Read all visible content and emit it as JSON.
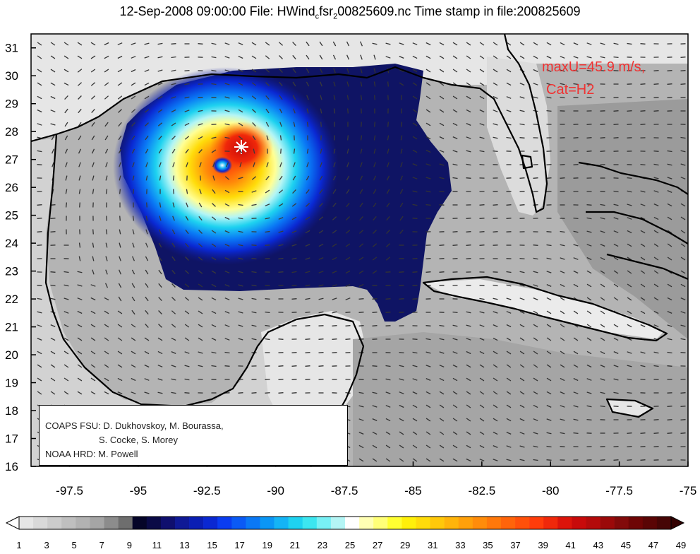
{
  "title": {
    "prefix": "12-Sep-2008 09:00:00 File: HWind",
    "sub1": "c",
    "mid": "fsr",
    "sub2": "2",
    "suffix": "00825609.nc Time stamp in file:200825609"
  },
  "annotation": {
    "line1": "maxU=45.9 m/s,",
    "line2": "Cat=H2",
    "color": "#f03232"
  },
  "credits": {
    "line1": "COAPS FSU: D. Dukhovskoy, M. Bourassa,",
    "line2": "S. Cocke, S. Morey",
    "line3": "NOAA HRD:  M. Powell"
  },
  "axes": {
    "x_ticks": [
      "-97.5",
      "-95",
      "-92.5",
      "-90",
      "-87.5",
      "-85",
      "-82.5",
      "-80",
      "-77.5",
      "-75"
    ],
    "y_ticks": [
      "31",
      "30",
      "29",
      "28",
      "27",
      "26",
      "25",
      "24",
      "23",
      "22",
      "21",
      "20",
      "19",
      "18",
      "17",
      "16"
    ]
  },
  "colorbar": {
    "labels": [
      "1",
      "3",
      "5",
      "7",
      "9",
      "11",
      "13",
      "15",
      "17",
      "19",
      "21",
      "23",
      "25",
      "27",
      "29",
      "31",
      "33",
      "35",
      "37",
      "39",
      "41",
      "43",
      "45",
      "47",
      "49"
    ],
    "colors": [
      "#e6e6e6",
      "#d9d9d9",
      "#cccccc",
      "#bfbfbf",
      "#b2b2b2",
      "#a5a5a5",
      "#8c8c8c",
      "#6e6e6e",
      "#050528",
      "#0a0a46",
      "#0f0f6e",
      "#0f1996",
      "#0a1eb4",
      "#0a28d2",
      "#0a3cf0",
      "#0a5af5",
      "#0a78f5",
      "#0a96f5",
      "#14b4f5",
      "#1ed2f0",
      "#3ce6f0",
      "#78f0f5",
      "#b4f5f5",
      "#ffffff",
      "#ffffb4",
      "#ffff78",
      "#ffff32",
      "#fff00a",
      "#ffdc0a",
      "#ffc80a",
      "#ffb40a",
      "#ffa00a",
      "#ff8c0a",
      "#ff780a",
      "#ff640a",
      "#ff500a",
      "#ff3c0a",
      "#f0280a",
      "#dc140a",
      "#c80a0a",
      "#b40a0a",
      "#9b0a0a",
      "#820a0a",
      "#6e0505",
      "#5a0505",
      "#460505"
    ]
  },
  "storm": {
    "eye_lon": -91.6,
    "eye_lat": 26.8,
    "max_marker_lon": -90.9,
    "max_marker_lat": 27.5,
    "max_wind_ms": 45.9
  }
}
